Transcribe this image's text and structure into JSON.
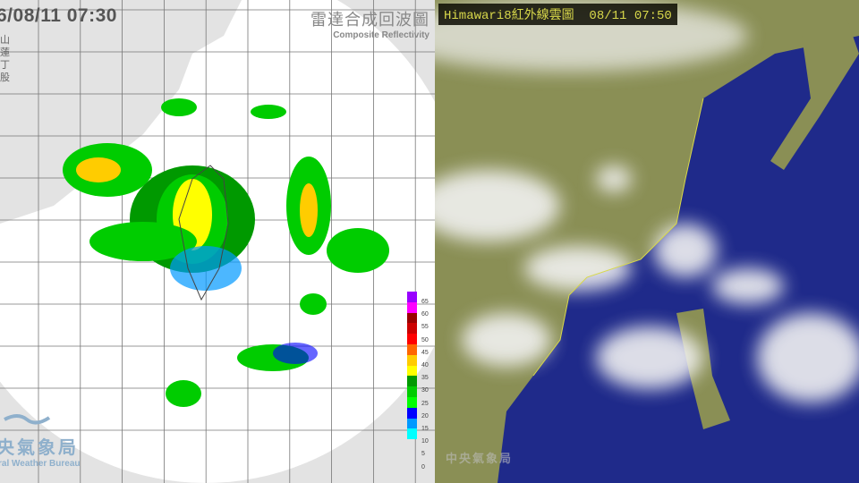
{
  "radar": {
    "timestamp": "6/08/11  07:30",
    "title_zh": "雷達合成回波圖",
    "title_en": "Composite Reflectivity",
    "side_chars": [
      "山",
      "蓮",
      "丁",
      "股"
    ],
    "legend": {
      "unit_levels": [
        "65",
        "60",
        "55",
        "50",
        "45",
        "40",
        "35",
        "30",
        "25",
        "20",
        "15",
        "10",
        "5",
        "0"
      ],
      "colors": [
        "#9900ff",
        "#ff00ff",
        "#990000",
        "#cc0000",
        "#ff0000",
        "#ff6600",
        "#ffcc00",
        "#ffff00",
        "#009900",
        "#00cc00",
        "#00ff00",
        "#0000ff",
        "#0099ff",
        "#00ffff"
      ]
    },
    "bureau_zh": "央氣象局",
    "bureau_en": "ral Weather Bureau"
  },
  "satellite": {
    "title": "Himawari8紅外線雲圖  08/11 07:50",
    "watermark": "中央氣象局",
    "colors": {
      "ocean": "#1f2a8a",
      "land": "#8a8f55",
      "cloud": "#f2f2f2",
      "coast": "#d8d84a"
    }
  }
}
